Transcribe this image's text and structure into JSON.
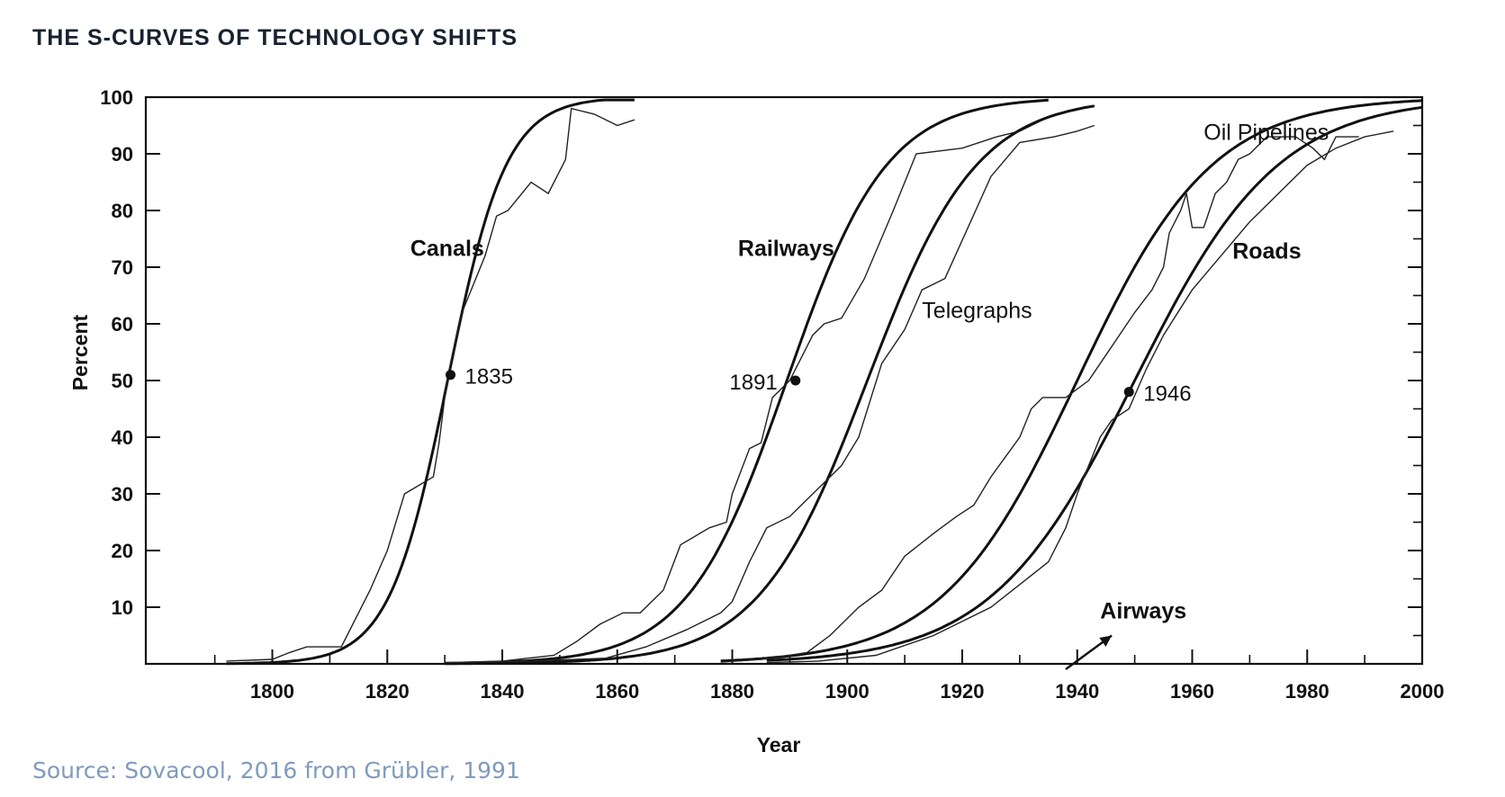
{
  "title": "THE S-CURVES OF TECHNOLOGY SHIFTS",
  "source": "Source: Sovacool, 2016 from Grübler, 1991",
  "chart_data": {
    "type": "line",
    "title": "THE S-CURVES OF TECHNOLOGY SHIFTS",
    "xlabel": "Year",
    "ylabel": "Percent",
    "xlim": [
      1778,
      2000
    ],
    "ylim": [
      0,
      100
    ],
    "x_ticks": [
      1800,
      1820,
      1840,
      1860,
      1880,
      1900,
      1920,
      1940,
      1960,
      1980,
      2000
    ],
    "y_ticks": [
      10,
      20,
      30,
      40,
      50,
      60,
      70,
      80,
      90,
      100
    ],
    "grid": false,
    "legend": "none (direct labels)",
    "series": [
      {
        "name": "Canals",
        "midpoint_label": "1835",
        "midpoint": [
          1831,
          51
        ],
        "fitted": {
          "x0": 1830.5,
          "k": 0.196,
          "xmin": 1792,
          "xmax": 1863
        },
        "observed": [
          [
            1792,
            0.5
          ],
          [
            1800,
            0.8
          ],
          [
            1803,
            2
          ],
          [
            1806,
            3
          ],
          [
            1812,
            3
          ],
          [
            1817,
            13
          ],
          [
            1820,
            20
          ],
          [
            1823,
            30
          ],
          [
            1828,
            33
          ],
          [
            1829,
            39
          ],
          [
            1830,
            47
          ],
          [
            1831,
            53
          ],
          [
            1833,
            62
          ],
          [
            1835,
            67
          ],
          [
            1837,
            72
          ],
          [
            1839,
            79
          ],
          [
            1841,
            80
          ],
          [
            1845,
            85
          ],
          [
            1848,
            83
          ],
          [
            1851,
            89
          ],
          [
            1852,
            98
          ],
          [
            1856,
            97
          ],
          [
            1860,
            95
          ],
          [
            1863,
            96
          ]
        ]
      },
      {
        "name": "Railways",
        "midpoint_label": "1891",
        "midpoint": [
          1891,
          50
        ],
        "fitted": {
          "x0": 1889.5,
          "k": 0.115,
          "xmin": 1830,
          "xmax": 1935
        },
        "observed": [
          [
            1830,
            0.2
          ],
          [
            1840,
            0.5
          ],
          [
            1849,
            1.5
          ],
          [
            1853,
            4
          ],
          [
            1857,
            7
          ],
          [
            1861,
            9
          ],
          [
            1864,
            9
          ],
          [
            1868,
            13
          ],
          [
            1871,
            21
          ],
          [
            1876,
            24
          ],
          [
            1879,
            25
          ],
          [
            1880,
            30
          ],
          [
            1883,
            38
          ],
          [
            1885,
            39
          ],
          [
            1887,
            47
          ],
          [
            1890,
            50
          ],
          [
            1894,
            58
          ],
          [
            1896,
            60
          ],
          [
            1899,
            61
          ],
          [
            1903,
            68
          ],
          [
            1908,
            80
          ],
          [
            1912,
            90
          ],
          [
            1920,
            91
          ],
          [
            1926,
            93
          ],
          [
            1930,
            94
          ],
          [
            1934,
            96
          ]
        ]
      },
      {
        "name": "Telegraphs",
        "fitted": {
          "x0": 1903.5,
          "k": 0.105,
          "xmin": 1830,
          "xmax": 1943
        },
        "observed": [
          [
            1830,
            0.2
          ],
          [
            1845,
            0.5
          ],
          [
            1858,
            1
          ],
          [
            1865,
            3
          ],
          [
            1872,
            6
          ],
          [
            1878,
            9
          ],
          [
            1880,
            11
          ],
          [
            1883,
            18
          ],
          [
            1886,
            24
          ],
          [
            1890,
            26
          ],
          [
            1895,
            31
          ],
          [
            1899,
            35
          ],
          [
            1902,
            40
          ],
          [
            1906,
            53
          ],
          [
            1910,
            59
          ],
          [
            1913,
            66
          ],
          [
            1917,
            68
          ],
          [
            1921,
            77
          ],
          [
            1925,
            86
          ],
          [
            1930,
            92
          ],
          [
            1936,
            93
          ],
          [
            1940,
            94
          ],
          [
            1943,
            95
          ]
        ]
      },
      {
        "name": "Oil Pipelines",
        "fitted": {
          "x0": 1940,
          "k": 0.085,
          "xmin": 1878,
          "xmax": 2000
        },
        "observed": [
          [
            1878,
            0.3
          ],
          [
            1885,
            0.8
          ],
          [
            1890,
            1.5
          ],
          [
            1893,
            2
          ],
          [
            1897,
            5
          ],
          [
            1902,
            10
          ],
          [
            1906,
            13
          ],
          [
            1910,
            19
          ],
          [
            1915,
            23
          ],
          [
            1919,
            26
          ],
          [
            1922,
            28
          ],
          [
            1925,
            33
          ],
          [
            1930,
            40
          ],
          [
            1932,
            45
          ],
          [
            1934,
            47
          ],
          [
            1938,
            47
          ],
          [
            1942,
            50
          ],
          [
            1946,
            56
          ],
          [
            1950,
            62
          ],
          [
            1953,
            66
          ],
          [
            1955,
            70
          ],
          [
            1956,
            76
          ],
          [
            1958,
            80
          ],
          [
            1959,
            83
          ],
          [
            1960,
            77
          ],
          [
            1962,
            77
          ],
          [
            1964,
            83
          ],
          [
            1966,
            85
          ],
          [
            1968,
            89
          ],
          [
            1970,
            90
          ],
          [
            1973,
            93
          ],
          [
            1978,
            93
          ],
          [
            1981,
            91
          ],
          [
            1983,
            89
          ],
          [
            1985,
            93
          ],
          [
            1989,
            93
          ]
        ]
      },
      {
        "name": "Roads",
        "midpoint_label": "1946",
        "midpoint": [
          1949,
          48
        ],
        "fitted": {
          "x0": 1950,
          "k": 0.08,
          "xmin": 1886,
          "xmax": 2000
        },
        "observed": [
          [
            1886,
            0.2
          ],
          [
            1895,
            0.5
          ],
          [
            1905,
            1.5
          ],
          [
            1915,
            5
          ],
          [
            1925,
            10
          ],
          [
            1930,
            14
          ],
          [
            1935,
            18
          ],
          [
            1938,
            24
          ],
          [
            1940,
            30
          ],
          [
            1942,
            35
          ],
          [
            1944,
            40
          ],
          [
            1946,
            43
          ],
          [
            1949,
            45
          ],
          [
            1952,
            52
          ],
          [
            1955,
            58
          ],
          [
            1960,
            66
          ],
          [
            1965,
            72
          ],
          [
            1970,
            78
          ],
          [
            1975,
            83
          ],
          [
            1980,
            88
          ],
          [
            1985,
            91
          ],
          [
            1990,
            93
          ],
          [
            1995,
            94
          ]
        ]
      },
      {
        "name": "Airways",
        "arrow_from": [
          1938,
          0
        ],
        "arrow_to": [
          1946,
          5
        ]
      }
    ]
  }
}
